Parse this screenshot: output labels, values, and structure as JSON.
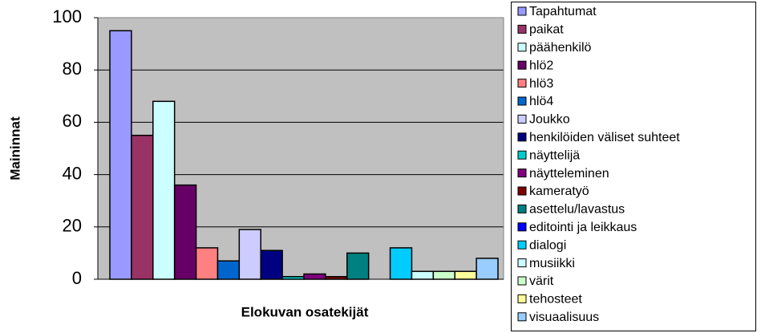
{
  "chart_data": {
    "type": "bar",
    "x_label": "Elokuvan osatekijät",
    "y_label": "Maininnat",
    "ylim": [
      0,
      100
    ],
    "yticks": [
      0,
      20,
      40,
      60,
      80,
      100
    ],
    "grid": true,
    "legend": "right",
    "series": [
      {
        "name": "Tapahtumat",
        "color": "#9999ff",
        "values": [
          95
        ]
      },
      {
        "name": "paikat",
        "color": "#993366",
        "values": [
          55
        ]
      },
      {
        "name": "päähenkilö",
        "color": "#ccffff",
        "values": [
          68
        ]
      },
      {
        "name": "hlö2",
        "color": "#660066",
        "values": [
          36
        ]
      },
      {
        "name": "hlö3",
        "color": "#ff8080",
        "values": [
          12
        ]
      },
      {
        "name": "hlö4",
        "color": "#0066cc",
        "values": [
          7
        ]
      },
      {
        "name": "Joukko",
        "color": "#ccccff",
        "values": [
          19
        ]
      },
      {
        "name": "henkilöiden väliset suhteet",
        "color": "#000080",
        "values": [
          11
        ]
      },
      {
        "name": "näyttelijä",
        "color": "#00cccc",
        "values": [
          1
        ]
      },
      {
        "name": "näytteleminen",
        "color": "#800080",
        "values": [
          2
        ]
      },
      {
        "name": "kameratyö",
        "color": "#800000",
        "values": [
          1
        ]
      },
      {
        "name": "asettelu/lavastus",
        "color": "#008080",
        "values": [
          10
        ]
      },
      {
        "name": "editointi ja leikkaus",
        "color": "#0000ff",
        "values": [
          0
        ]
      },
      {
        "name": "dialogi",
        "color": "#00ccff",
        "values": [
          12
        ]
      },
      {
        "name": "musiikki",
        "color": "#ccffff",
        "values": [
          3
        ]
      },
      {
        "name": "värit",
        "color": "#ccffcc",
        "values": [
          3
        ]
      },
      {
        "name": "tehosteet",
        "color": "#ffff99",
        "values": [
          3
        ]
      },
      {
        "name": "visuaalisuus",
        "color": "#99ccff",
        "values": [
          8
        ]
      }
    ]
  }
}
